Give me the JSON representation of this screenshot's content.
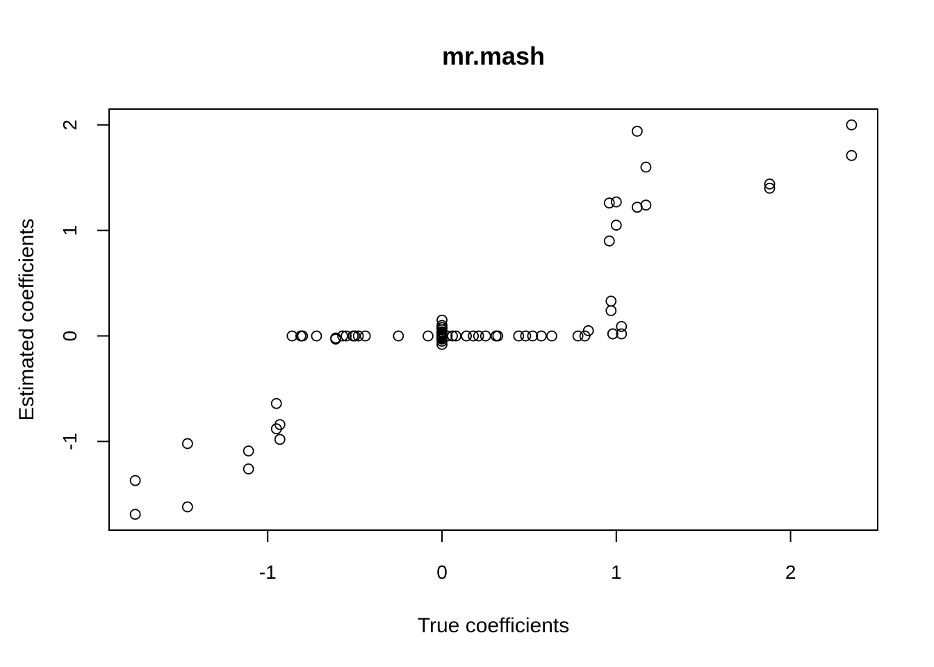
{
  "chart_data": {
    "type": "scatter",
    "title": "mr.mash",
    "xlabel": "True coefficients",
    "ylabel": "Estimated coefficients",
    "xlim": [
      -1.91,
      2.5
    ],
    "ylim": [
      -1.84,
      2.15
    ],
    "xticks": [
      -1,
      0,
      1,
      2
    ],
    "xtick_labels": [
      "-1",
      "0",
      "1",
      "2"
    ],
    "yticks": [
      -1,
      0,
      1,
      2
    ],
    "ytick_labels": [
      "-1",
      "0",
      "1",
      "2"
    ],
    "grid": false,
    "marker": "open-circle",
    "points": [
      [
        -1.76,
        -1.37
      ],
      [
        -1.76,
        -1.69
      ],
      [
        -1.46,
        -1.02
      ],
      [
        -1.46,
        -1.62
      ],
      [
        -1.11,
        -1.09
      ],
      [
        -1.11,
        -1.26
      ],
      [
        -0.95,
        -0.64
      ],
      [
        -0.95,
        -0.88
      ],
      [
        -0.93,
        -0.84
      ],
      [
        -0.93,
        -0.98
      ],
      [
        -0.86,
        0.0
      ],
      [
        -0.81,
        0.0
      ],
      [
        -0.8,
        0.0
      ],
      [
        -0.72,
        0.0
      ],
      [
        -0.61,
        -0.03
      ],
      [
        -0.61,
        -0.02
      ],
      [
        -0.57,
        0.0
      ],
      [
        -0.55,
        0.0
      ],
      [
        -0.51,
        0.0
      ],
      [
        -0.5,
        0.0
      ],
      [
        -0.48,
        0.0
      ],
      [
        -0.44,
        0.0
      ],
      [
        -0.25,
        0.0
      ],
      [
        -0.08,
        0.0
      ],
      [
        0.0,
        0.15
      ],
      [
        0.0,
        0.1
      ],
      [
        0.0,
        0.08
      ],
      [
        0.0,
        0.06
      ],
      [
        0.0,
        0.04
      ],
      [
        0.0,
        0.03
      ],
      [
        0.0,
        0.02
      ],
      [
        0.0,
        0.01
      ],
      [
        0.0,
        0.0
      ],
      [
        0.0,
        -0.01
      ],
      [
        0.0,
        -0.02
      ],
      [
        0.0,
        -0.03
      ],
      [
        0.0,
        -0.05
      ],
      [
        0.0,
        -0.08
      ],
      [
        0.03,
        0.0
      ],
      [
        0.06,
        0.0
      ],
      [
        0.08,
        0.0
      ],
      [
        0.14,
        0.0
      ],
      [
        0.18,
        0.0
      ],
      [
        0.21,
        0.0
      ],
      [
        0.25,
        0.0
      ],
      [
        0.31,
        0.0
      ],
      [
        0.32,
        0.0
      ],
      [
        0.44,
        0.0
      ],
      [
        0.48,
        0.0
      ],
      [
        0.52,
        0.0
      ],
      [
        0.57,
        0.0
      ],
      [
        0.63,
        0.0
      ],
      [
        0.78,
        0.0
      ],
      [
        0.82,
        0.0
      ],
      [
        0.84,
        0.05
      ],
      [
        0.96,
        1.26
      ],
      [
        0.96,
        0.9
      ],
      [
        0.97,
        0.33
      ],
      [
        0.97,
        0.24
      ],
      [
        0.98,
        0.02
      ],
      [
        0.98,
        0.02
      ],
      [
        1.0,
        1.27
      ],
      [
        1.0,
        1.05
      ],
      [
        1.03,
        0.09
      ],
      [
        1.03,
        0.02
      ],
      [
        1.12,
        1.94
      ],
      [
        1.12,
        1.22
      ],
      [
        1.17,
        1.6
      ],
      [
        1.17,
        1.24
      ],
      [
        1.88,
        1.44
      ],
      [
        1.88,
        1.4
      ],
      [
        2.35,
        2.0
      ],
      [
        2.35,
        1.71
      ]
    ]
  }
}
